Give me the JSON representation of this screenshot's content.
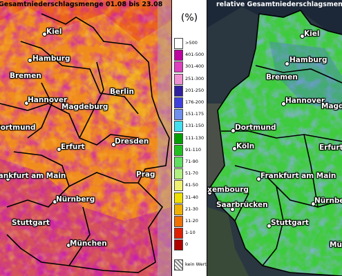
{
  "left_map": {
    "title": "Gesamtniederschlagsmenge 01.08 bis 23.08",
    "cities": [
      {
        "name": "Kiel"
      },
      {
        "name": "Hamburg"
      },
      {
        "name": "Bremen"
      },
      {
        "name": "Berlin"
      },
      {
        "name": "Hannover"
      },
      {
        "name": "Magdeburg"
      },
      {
        "name": "Dortmund"
      },
      {
        "name": "Dresden"
      },
      {
        "name": "Erfurt"
      },
      {
        "name": "Prag"
      },
      {
        "name": "Frankfurt am Main"
      },
      {
        "name": "Nürnberg"
      },
      {
        "name": "Stuttgart"
      },
      {
        "name": "München"
      }
    ]
  },
  "right_map": {
    "title": "relative Gesamtniederschlagsmenge",
    "cities": [
      {
        "name": "Kiel"
      },
      {
        "name": "Hamburg"
      },
      {
        "name": "Bremen"
      },
      {
        "name": "Hannover"
      },
      {
        "name": "Magdeburg"
      },
      {
        "name": "Dortmund"
      },
      {
        "name": "Köln"
      },
      {
        "name": "Erfurt"
      },
      {
        "name": "Frankfurt am Main"
      },
      {
        "name": "Luxembourg"
      },
      {
        "name": "Saarbrücken"
      },
      {
        "name": "Nürnberg"
      },
      {
        "name": "Stuttgart"
      },
      {
        "name": "München"
      }
    ]
  },
  "legend": {
    "unit": "(%)",
    "items": [
      {
        "label": ">500",
        "color": "#ffffff"
      },
      {
        "label": "401-500",
        "color": "#c000a0"
      },
      {
        "label": "301-400",
        "color": "#e040c0"
      },
      {
        "label": "251-300",
        "color": "#f090d0"
      },
      {
        "label": "201-250",
        "color": "#3020a0"
      },
      {
        "label": "176-200",
        "color": "#4040e0"
      },
      {
        "label": "151-175",
        "color": "#7090f0"
      },
      {
        "label": "131-150",
        "color": "#40e0f0"
      },
      {
        "label": "111-130",
        "color": "#00a000"
      },
      {
        "label": "91-110",
        "color": "#20c020"
      },
      {
        "label": "71-90",
        "color": "#60e060"
      },
      {
        "label": "51-70",
        "color": "#b0f080"
      },
      {
        "label": "41-50",
        "color": "#f0f070"
      },
      {
        "label": "31-40",
        "color": "#f0e000"
      },
      {
        "label": "21-30",
        "color": "#f0b000"
      },
      {
        "label": "11-20",
        "color": "#f07000"
      },
      {
        "label": "1-10",
        "color": "#e02000"
      },
      {
        "label": "0",
        "color": "#b00000"
      }
    ],
    "nodata_label": "kein Wert"
  }
}
